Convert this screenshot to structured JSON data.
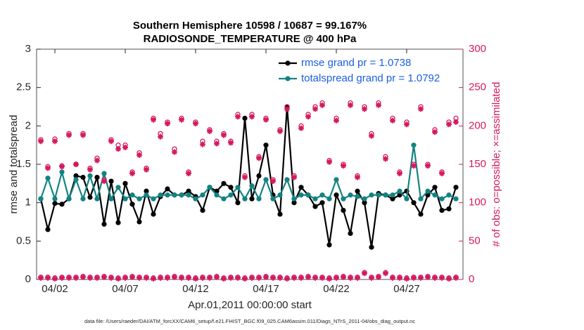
{
  "chart_data": {
    "type": "line",
    "title": "Southern Hemisphere 10598 / 10687 = 99.167%",
    "subtitle": "RADIOSONDE_TEMPERATURE @ 400 hPa",
    "xlabel": "Apr.01,2011 00:00:00 start",
    "ylabel": "rmse and totalspread",
    "y2label": "# of obs: o=possible; ×=assimilated",
    "footnote": "data file: /Users/raeder/DAI/ATM_forcXX/CAM6_setup/f.e21.FHIST_BGC.f09_025.CAM6assim.011/Diags_NTrS_2011-04/obs_diag_output.nc",
    "xlim": [
      -0.3,
      30
    ],
    "xticks": [
      {
        "value": 1,
        "label": "04/02"
      },
      {
        "value": 6,
        "label": "04/07"
      },
      {
        "value": 11,
        "label": "04/12"
      },
      {
        "value": 16,
        "label": "04/17"
      },
      {
        "value": 21,
        "label": "04/22"
      },
      {
        "value": 26,
        "label": "04/27"
      }
    ],
    "ylim": [
      0,
      3
    ],
    "yticks": [
      0,
      0.5,
      1,
      1.5,
      2,
      2.5,
      3
    ],
    "y2lim": [
      0,
      300
    ],
    "y2ticks": [
      0,
      50,
      100,
      150,
      200,
      250,
      300
    ],
    "legend": "top-right",
    "x": [
      0,
      0.5,
      1,
      1.5,
      2,
      2.5,
      3,
      3.5,
      4,
      4.5,
      5,
      5.5,
      6,
      6.5,
      7,
      7.5,
      8,
      8.5,
      9,
      9.5,
      10,
      10.5,
      11,
      11.5,
      12,
      12.5,
      13,
      13.5,
      14,
      14.5,
      15,
      15.5,
      16,
      16.5,
      17,
      17.5,
      18,
      18.5,
      19,
      19.5,
      20,
      20.5,
      21,
      21.5,
      22,
      22.5,
      23,
      23.5,
      24,
      24.5,
      25,
      25.5,
      26,
      26.5,
      27,
      27.5,
      28,
      28.5,
      29,
      29.5
    ],
    "series": [
      {
        "name": "rmse grand pr = 1.0738",
        "color": "#000000",
        "marker": "dot",
        "values": [
          1.05,
          0.65,
          0.99,
          0.98,
          1.05,
          1.35,
          1.33,
          1.07,
          1.33,
          0.72,
          1.28,
          0.74,
          1.25,
          0.98,
          0.75,
          1.15,
          0.85,
          1.08,
          1.18,
          1.1,
          1.1,
          1.15,
          1.08,
          0.9,
          1.2,
          1.15,
          1.25,
          1.2,
          1.0,
          2.1,
          1.05,
          1.35,
          1.75,
          1.1,
          0.85,
          2.25,
          1.0,
          1.2,
          1.1,
          0.95,
          1.0,
          0.45,
          1.1,
          0.9,
          0.6,
          1.15,
          1.0,
          0.42,
          1.12,
          1.1,
          1.05,
          1.1,
          1.15,
          1.0,
          0.85,
          1.1,
          1.2,
          0.9,
          0.92,
          1.2
        ]
      },
      {
        "name": "totalspread grand pr = 1.0792",
        "color": "#148282",
        "marker": "dot",
        "values": [
          1.05,
          1.32,
          1.05,
          1.4,
          1.05,
          1.3,
          1.05,
          1.35,
          1.05,
          1.38,
          1.05,
          1.2,
          1.05,
          1.1,
          1.05,
          1.1,
          1.05,
          1.1,
          1.1,
          1.1,
          1.1,
          1.1,
          1.05,
          1.1,
          1.2,
          1.1,
          1.05,
          1.1,
          1.2,
          1.05,
          1.22,
          1.05,
          1.3,
          1.05,
          1.1,
          1.3,
          1.05,
          1.1,
          1.1,
          1.05,
          1.1,
          1.05,
          1.3,
          1.05,
          1.1,
          1.08,
          1.05,
          1.1,
          1.1,
          1.1,
          1.1,
          1.15,
          1.05,
          1.75,
          1.05,
          1.15,
          1.1,
          1.05,
          1.1,
          1.05
        ]
      },
      {
        "color": "#d6185f",
        "axis": "y2",
        "marker": "circle",
        "values": [
          182,
          147,
          183,
          148,
          190,
          150,
          190,
          145,
          158,
          130,
          182,
          175,
          175,
          140,
          165,
          145,
          210,
          190,
          205,
          170,
          210,
          140,
          205,
          180,
          195,
          180,
          190,
          180,
          215,
          135,
          215,
          160,
          210,
          130,
          195,
          225,
          135,
          200,
          215,
          225,
          230,
          155,
          210,
          150,
          230,
          135,
          225,
          190,
          230,
          160,
          210,
          140,
          205,
          150,
          225,
          150,
          195,
          140,
          205,
          210
        ]
      },
      {
        "color": "#d6185f",
        "axis": "y2",
        "marker": "star",
        "values": [
          180,
          145,
          180,
          147,
          188,
          150,
          188,
          143,
          155,
          128,
          180,
          170,
          172,
          138,
          162,
          143,
          208,
          186,
          203,
          166,
          208,
          138,
          203,
          176,
          193,
          177,
          188,
          178,
          212,
          133,
          212,
          158,
          208,
          128,
          193,
          222,
          133,
          197,
          212,
          222,
          227,
          153,
          207,
          148,
          227,
          133,
          222,
          187,
          227,
          157,
          207,
          138,
          202,
          148,
          222,
          148,
          192,
          138,
          202,
          205
        ]
      },
      {
        "color": "#d6185f",
        "axis": "y2",
        "marker": "circle",
        "values": [
          3,
          3,
          2,
          3,
          3,
          3,
          4,
          3,
          3,
          4,
          3,
          2,
          3,
          4,
          3,
          3,
          2,
          3,
          3,
          4,
          3,
          3,
          2,
          3,
          3,
          4,
          2,
          3,
          3,
          2,
          3,
          3,
          4,
          3,
          3,
          2,
          3,
          3,
          4,
          3,
          3,
          2,
          3,
          4,
          3,
          3,
          9,
          3,
          4,
          9,
          3,
          3,
          2,
          3,
          3,
          4,
          3,
          3,
          2,
          3
        ]
      },
      {
        "color": "#d6185f",
        "axis": "y2",
        "marker": "star",
        "values": [
          2,
          2,
          1,
          2,
          2,
          2,
          3,
          2,
          2,
          3,
          2,
          1,
          2,
          3,
          2,
          2,
          1,
          2,
          2,
          3,
          2,
          2,
          1,
          2,
          2,
          3,
          1,
          2,
          2,
          1,
          2,
          2,
          3,
          2,
          2,
          1,
          2,
          2,
          3,
          2,
          2,
          1,
          2,
          3,
          2,
          2,
          8,
          2,
          3,
          8,
          2,
          2,
          1,
          2,
          2,
          3,
          2,
          2,
          1,
          2
        ]
      }
    ]
  }
}
